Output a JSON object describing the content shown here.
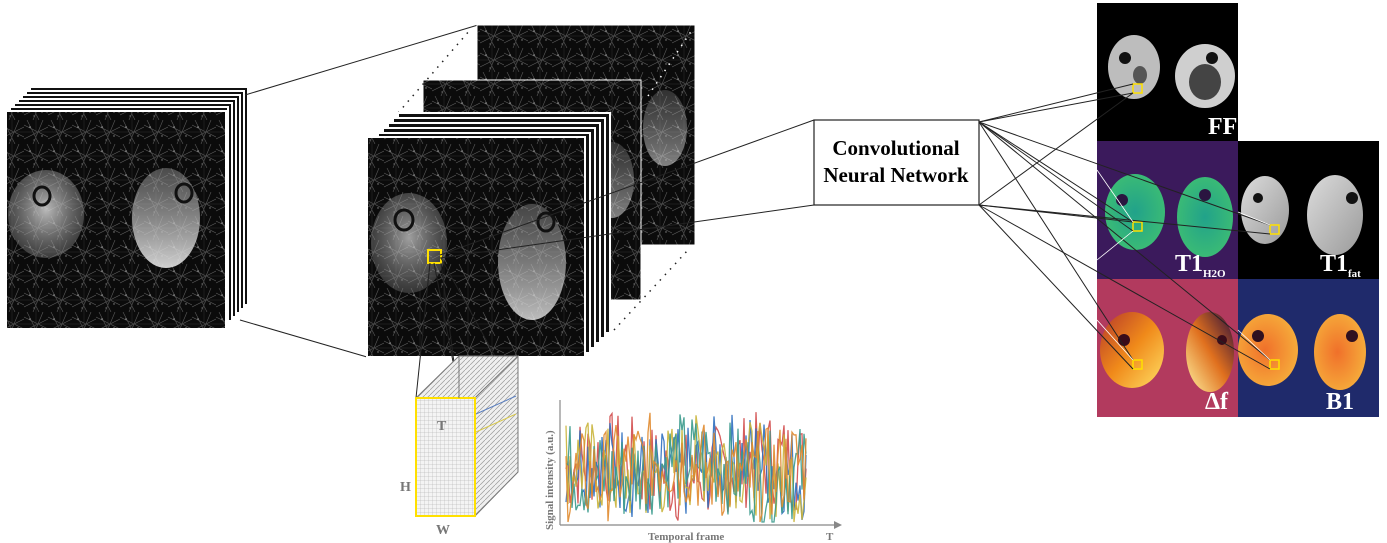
{
  "network": {
    "line1": "Convolutional",
    "line2": "Neural Network"
  },
  "maps": {
    "ff": "FF",
    "t1h2o_main": "T1",
    "t1h2o_sub": "H2O",
    "t1fat_main": "T1",
    "t1fat_sub": "fat",
    "df": "Δf",
    "b1": "B1"
  },
  "cube": {
    "t": "T",
    "h": "H",
    "w": "W"
  },
  "signal_plot": {
    "ylabel": "Signal intensity (a.u.)",
    "xlabel": "Temporal frame",
    "axis_end": "T",
    "series_colors": [
      "#d24b4b",
      "#2f6fbf",
      "#c9b43a",
      "#3a9a8c",
      "#e08a2e"
    ]
  },
  "colors": {
    "ff_bg": "#000000",
    "t1h2o_bg": "#3b1a5c",
    "t1fat_bg": "#000000",
    "df_bg": "#b23a5e",
    "b1_bg": "#1f2a6b",
    "roi": "#ffe000"
  }
}
